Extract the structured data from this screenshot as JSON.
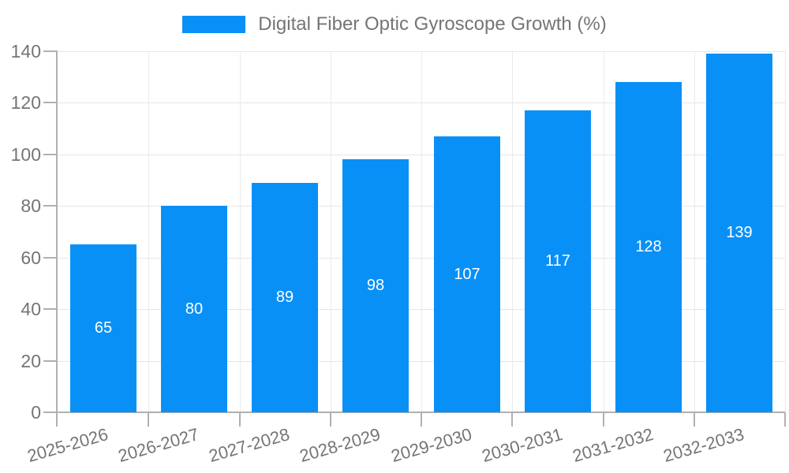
{
  "chart_data": {
    "type": "bar",
    "title": "Digital Fiber Optic Gyroscope Growth (%)",
    "legend": {
      "label": "Digital Fiber Optic Gyroscope Growth (%)",
      "position": "top-center"
    },
    "categories": [
      "2025-2026",
      "2026-2027",
      "2027-2028",
      "2028-2029",
      "2029-2030",
      "2030-2031",
      "2031-2032",
      "2032-2033"
    ],
    "values": [
      65,
      80,
      89,
      98,
      107,
      117,
      128,
      139
    ],
    "value_labels": [
      "65",
      "80",
      "89",
      "98",
      "107",
      "117",
      "128",
      "139"
    ],
    "xlabel": "",
    "ylabel": "",
    "ylim": [
      0,
      140
    ],
    "yticks": [
      0,
      20,
      40,
      60,
      80,
      100,
      120,
      140
    ],
    "ytick_labels": [
      "0",
      "20",
      "40",
      "60",
      "80",
      "100",
      "120",
      "140"
    ],
    "grid": true,
    "colors": {
      "bar": "#0890f7",
      "value_label": "#ffffff",
      "axis_text": "#757575",
      "legend_text": "#757575",
      "axis_line": "#b0b0b0",
      "hgrid_line": "#e6e6e6",
      "vgrid_line": "#ebebeb"
    }
  }
}
